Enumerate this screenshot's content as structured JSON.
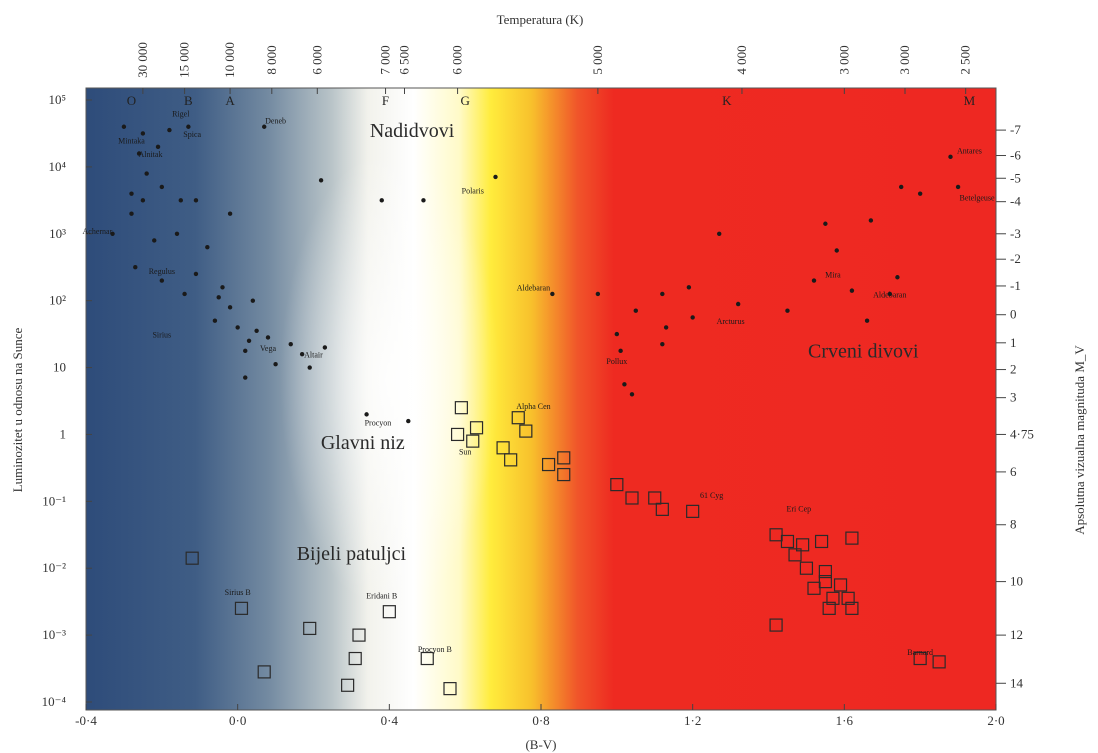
{
  "chart_data": {
    "type": "scatter",
    "title": "",
    "top_axis_label": "Temperatura (K)",
    "xlabel": "(B-V)",
    "ylabel": "Luminozitet u odnosu na Sunce",
    "right_axis_label": "Apsolutna vizualna magnituda M_V",
    "xlim": [
      -0.4,
      2.0
    ],
    "ylim_log10": [
      -4,
      5
    ],
    "x_ticks": [
      {
        "value": -0.4,
        "label": "-0·4"
      },
      {
        "value": 0.0,
        "label": "0·0"
      },
      {
        "value": 0.4,
        "label": "0·4"
      },
      {
        "value": 0.8,
        "label": "0·8"
      },
      {
        "value": 1.2,
        "label": "1·2"
      },
      {
        "value": 1.6,
        "label": "1·6"
      },
      {
        "value": 2.0,
        "label": "2·0"
      }
    ],
    "y_ticks": [
      {
        "log": 5,
        "label": "10⁵"
      },
      {
        "log": 4,
        "label": "10⁴"
      },
      {
        "log": 3,
        "label": "10³"
      },
      {
        "log": 2,
        "label": "10²"
      },
      {
        "log": 1,
        "label": "10"
      },
      {
        "log": 0,
        "label": "1"
      },
      {
        "log": -1,
        "label": "10⁻¹"
      },
      {
        "log": -2,
        "label": "10⁻²"
      },
      {
        "log": -3,
        "label": "10⁻³"
      },
      {
        "log": -4,
        "label": "10⁻⁴"
      }
    ],
    "top_ticks": [
      {
        "x": -0.25,
        "label": "30 000"
      },
      {
        "x": -0.14,
        "label": "15 000"
      },
      {
        "x": -0.02,
        "label": "10 000"
      },
      {
        "x": 0.09,
        "label": "8 000"
      },
      {
        "x": 0.21,
        "label": "6 000"
      },
      {
        "x": 0.39,
        "label": "7 000"
      },
      {
        "x": 0.44,
        "label": "6 500"
      },
      {
        "x": 0.58,
        "label": "6 000"
      },
      {
        "x": 0.95,
        "label": "5 000"
      },
      {
        "x": 1.33,
        "label": "4 000"
      },
      {
        "x": 1.6,
        "label": "3 000"
      },
      {
        "x": 1.76,
        "label": "3 000"
      },
      {
        "x": 1.92,
        "label": "2 500"
      }
    ],
    "right_ticks": [
      {
        "log": 4.55,
        "label": "-7"
      },
      {
        "log": 4.17,
        "label": "-6"
      },
      {
        "log": 3.83,
        "label": "-5"
      },
      {
        "log": 3.48,
        "label": "-4"
      },
      {
        "log": 3.0,
        "label": "-3"
      },
      {
        "log": 2.62,
        "label": "-2"
      },
      {
        "log": 2.22,
        "label": "-1"
      },
      {
        "log": 1.79,
        "label": "0"
      },
      {
        "log": 1.37,
        "label": "1"
      },
      {
        "log": 0.97,
        "label": "2"
      },
      {
        "log": 0.55,
        "label": "3"
      },
      {
        "log": 0.0,
        "label": "4·75"
      },
      {
        "log": -0.56,
        "label": "6"
      },
      {
        "log": -1.35,
        "label": "8"
      },
      {
        "log": -2.2,
        "label": "10"
      },
      {
        "log": -3.0,
        "label": "12"
      },
      {
        "log": -3.72,
        "label": "14"
      }
    ],
    "spectral_classes": [
      {
        "x": -0.28,
        "label": "O"
      },
      {
        "x": -0.13,
        "label": "B"
      },
      {
        "x": -0.02,
        "label": "A"
      },
      {
        "x": 0.39,
        "label": "F"
      },
      {
        "x": 0.6,
        "label": "G"
      },
      {
        "x": 1.29,
        "label": "K"
      },
      {
        "x": 1.93,
        "label": "M"
      }
    ],
    "regions": [
      {
        "text": "Nadidvovi",
        "x": 0.46,
        "log": 4.45
      },
      {
        "text": "Glavni niz",
        "x": 0.33,
        "log": -0.22
      },
      {
        "text": "Bijeli patuljci",
        "x": 0.3,
        "log": -1.88
      },
      {
        "text": "Crveni divovi",
        "x": 1.65,
        "log": 1.15
      }
    ],
    "series": [
      {
        "marker": "dot",
        "points": [
          {
            "x": -0.3,
            "log": 4.6
          },
          {
            "x": -0.25,
            "log": 4.5
          },
          {
            "x": -0.21,
            "log": 4.3
          },
          {
            "x": -0.26,
            "log": 4.2
          },
          {
            "x": -0.18,
            "log": 4.55
          },
          {
            "x": -0.13,
            "log": 4.6
          },
          {
            "x": 0.07,
            "log": 4.6
          },
          {
            "x": -0.24,
            "log": 3.9
          },
          {
            "x": -0.28,
            "log": 3.6
          },
          {
            "x": -0.2,
            "log": 3.7
          },
          {
            "x": -0.28,
            "log": 3.3
          },
          {
            "x": -0.25,
            "log": 3.5
          },
          {
            "x": -0.15,
            "log": 3.5
          },
          {
            "x": -0.11,
            "log": 3.5
          },
          {
            "x": -0.02,
            "log": 3.3
          },
          {
            "x": -0.33,
            "log": 3.0
          },
          {
            "x": -0.22,
            "log": 2.9
          },
          {
            "x": -0.16,
            "log": 3.0
          },
          {
            "x": -0.08,
            "log": 2.8
          },
          {
            "x": -0.27,
            "log": 2.5
          },
          {
            "x": -0.2,
            "log": 2.3
          },
          {
            "x": -0.11,
            "log": 2.4
          },
          {
            "x": -0.04,
            "log": 2.2
          },
          {
            "x": -0.14,
            "log": 2.1
          },
          {
            "x": -0.05,
            "log": 2.05
          },
          {
            "x": -0.02,
            "log": 1.9
          },
          {
            "x": 0.04,
            "log": 2.0
          },
          {
            "x": -0.06,
            "log": 1.7
          },
          {
            "x": 0.0,
            "log": 1.6
          },
          {
            "x": 0.05,
            "log": 1.55
          },
          {
            "x": 0.03,
            "log": 1.4
          },
          {
            "x": 0.08,
            "log": 1.45
          },
          {
            "x": 0.14,
            "log": 1.35
          },
          {
            "x": 0.1,
            "log": 1.05
          },
          {
            "x": 0.17,
            "log": 1.2
          },
          {
            "x": 0.23,
            "log": 1.3
          },
          {
            "x": 0.19,
            "log": 1.0
          },
          {
            "x": 0.02,
            "log": 0.85
          },
          {
            "x": 0.22,
            "log": 3.8
          },
          {
            "x": 0.38,
            "log": 3.5
          },
          {
            "x": 0.49,
            "log": 3.5
          },
          {
            "x": 0.68,
            "log": 3.85
          },
          {
            "x": 0.34,
            "log": 0.3
          },
          {
            "x": 0.45,
            "log": 0.2
          },
          {
            "x": 0.83,
            "log": 2.1
          },
          {
            "x": 0.95,
            "log": 2.1
          },
          {
            "x": 1.12,
            "log": 2.1
          },
          {
            "x": 1.19,
            "log": 2.2
          },
          {
            "x": 1.05,
            "log": 1.85
          },
          {
            "x": 1.13,
            "log": 1.6
          },
          {
            "x": 1.2,
            "log": 1.75
          },
          {
            "x": 1.32,
            "log": 1.95
          },
          {
            "x": 1.45,
            "log": 1.85
          },
          {
            "x": 1.52,
            "log": 2.3
          },
          {
            "x": 1.62,
            "log": 2.15
          },
          {
            "x": 1.72,
            "log": 2.1
          },
          {
            "x": 1.74,
            "log": 2.35
          },
          {
            "x": 1.66,
            "log": 1.7
          },
          {
            "x": 1.27,
            "log": 3.0
          },
          {
            "x": 1.67,
            "log": 3.2
          },
          {
            "x": 1.75,
            "log": 3.7
          },
          {
            "x": 1.8,
            "log": 3.6
          },
          {
            "x": 1.88,
            "log": 4.15
          },
          {
            "x": 1.9,
            "log": 3.7
          },
          {
            "x": 1.02,
            "log": 0.75
          },
          {
            "x": 1.01,
            "log": 1.25
          },
          {
            "x": 1.12,
            "log": 1.35
          },
          {
            "x": 1.0,
            "log": 1.5
          },
          {
            "x": 1.58,
            "log": 2.75
          },
          {
            "x": 1.55,
            "log": 3.15
          },
          {
            "x": 1.04,
            "log": 0.6
          },
          {
            "x": 0.02,
            "log": 1.25
          }
        ]
      },
      {
        "marker": "open-square",
        "points": [
          {
            "x": -0.12,
            "log": -1.85
          },
          {
            "x": 0.01,
            "log": -2.6
          },
          {
            "x": 0.07,
            "log": -3.55
          },
          {
            "x": 0.19,
            "log": -2.9
          },
          {
            "x": 0.29,
            "log": -3.75
          },
          {
            "x": 0.31,
            "log": -3.35
          },
          {
            "x": 0.32,
            "log": -3.0
          },
          {
            "x": 0.4,
            "log": -2.65
          },
          {
            "x": 0.5,
            "log": -3.35
          },
          {
            "x": 0.56,
            "log": -3.8
          },
          {
            "x": 0.59,
            "log": 0.4
          },
          {
            "x": 0.58,
            "log": 0.0
          },
          {
            "x": 0.62,
            "log": -0.1
          },
          {
            "x": 0.63,
            "log": 0.1
          },
          {
            "x": 0.7,
            "log": -0.2
          },
          {
            "x": 0.72,
            "log": -0.38
          },
          {
            "x": 0.76,
            "log": 0.05
          },
          {
            "x": 0.74,
            "log": 0.25
          },
          {
            "x": 0.82,
            "log": -0.45
          },
          {
            "x": 0.86,
            "log": -0.35
          },
          {
            "x": 0.86,
            "log": -0.6
          },
          {
            "x": 1.0,
            "log": -0.75
          },
          {
            "x": 1.04,
            "log": -0.95
          },
          {
            "x": 1.1,
            "log": -0.95
          },
          {
            "x": 1.12,
            "log": -1.12
          },
          {
            "x": 1.2,
            "log": -1.15
          },
          {
            "x": 1.42,
            "log": -1.5
          },
          {
            "x": 1.45,
            "log": -1.6
          },
          {
            "x": 1.49,
            "log": -1.65
          },
          {
            "x": 1.54,
            "log": -1.6
          },
          {
            "x": 1.47,
            "log": -1.8
          },
          {
            "x": 1.5,
            "log": -2.0
          },
          {
            "x": 1.55,
            "log": -2.05
          },
          {
            "x": 1.55,
            "log": -2.2
          },
          {
            "x": 1.59,
            "log": -2.25
          },
          {
            "x": 1.52,
            "log": -2.3
          },
          {
            "x": 1.57,
            "log": -2.45
          },
          {
            "x": 1.61,
            "log": -2.45
          },
          {
            "x": 1.42,
            "log": -2.85
          },
          {
            "x": 1.56,
            "log": -2.6
          },
          {
            "x": 1.62,
            "log": -1.55
          },
          {
            "x": 1.62,
            "log": -2.6
          },
          {
            "x": 1.85,
            "log": -3.4
          },
          {
            "x": 1.8,
            "log": -3.35
          }
        ]
      }
    ],
    "star_labels": [
      {
        "text": "Rigel",
        "x": -0.15,
        "log": 4.75
      },
      {
        "text": "Deneb",
        "x": 0.1,
        "log": 4.65
      },
      {
        "text": "Mintaka",
        "x": -0.28,
        "log": 4.35
      },
      {
        "text": "Spica",
        "x": -0.12,
        "log": 4.45
      },
      {
        "text": "Alnitak",
        "x": -0.23,
        "log": 4.15
      },
      {
        "text": "Antares",
        "x": 1.93,
        "log": 4.2
      },
      {
        "text": "Polaris",
        "x": 0.62,
        "log": 3.6
      },
      {
        "text": "Betelgeuse",
        "x": 1.95,
        "log": 3.5
      },
      {
        "text": "Achernar",
        "x": -0.37,
        "log": 3.0
      },
      {
        "text": "Regulus",
        "x": -0.2,
        "log": 2.4
      },
      {
        "text": "Aldebaran",
        "x": 0.78,
        "log": 2.15
      },
      {
        "text": "Arcturus",
        "x": 1.3,
        "log": 1.65
      },
      {
        "text": "Mira",
        "x": 1.57,
        "log": 2.35
      },
      {
        "text": "Aldebaran",
        "x": 1.72,
        "log": 2.05
      },
      {
        "text": "Pollux",
        "x": 1.0,
        "log": 1.05
      },
      {
        "text": "Sirius",
        "x": -0.2,
        "log": 1.45
      },
      {
        "text": "Vega",
        "x": 0.08,
        "log": 1.25
      },
      {
        "text": "Altair",
        "x": 0.2,
        "log": 1.15
      },
      {
        "text": "Procyon",
        "x": 0.37,
        "log": 0.13
      },
      {
        "text": "Sun",
        "x": 0.6,
        "log": -0.3
      },
      {
        "text": "Alpha Cen",
        "x": 0.78,
        "log": 0.38
      },
      {
        "text": "61 Cyg",
        "x": 1.25,
        "log": -0.95
      },
      {
        "text": "Eri Cep",
        "x": 1.48,
        "log": -1.15
      },
      {
        "text": "Barnard",
        "x": 1.8,
        "log": -3.3
      },
      {
        "text": "Sirius B",
        "x": 0.0,
        "log": -2.4
      },
      {
        "text": "Eridani B",
        "x": 0.38,
        "log": -2.45
      },
      {
        "text": "Procyon B",
        "x": 0.52,
        "log": -3.25
      }
    ]
  },
  "colors": {
    "hot_blue": "#3c5a82",
    "white": "#ffffff",
    "yellow": "#ffe52e",
    "red": "#ee2a21",
    "dot": "#1a1a1a",
    "square_stroke": "#2a2a2a"
  }
}
